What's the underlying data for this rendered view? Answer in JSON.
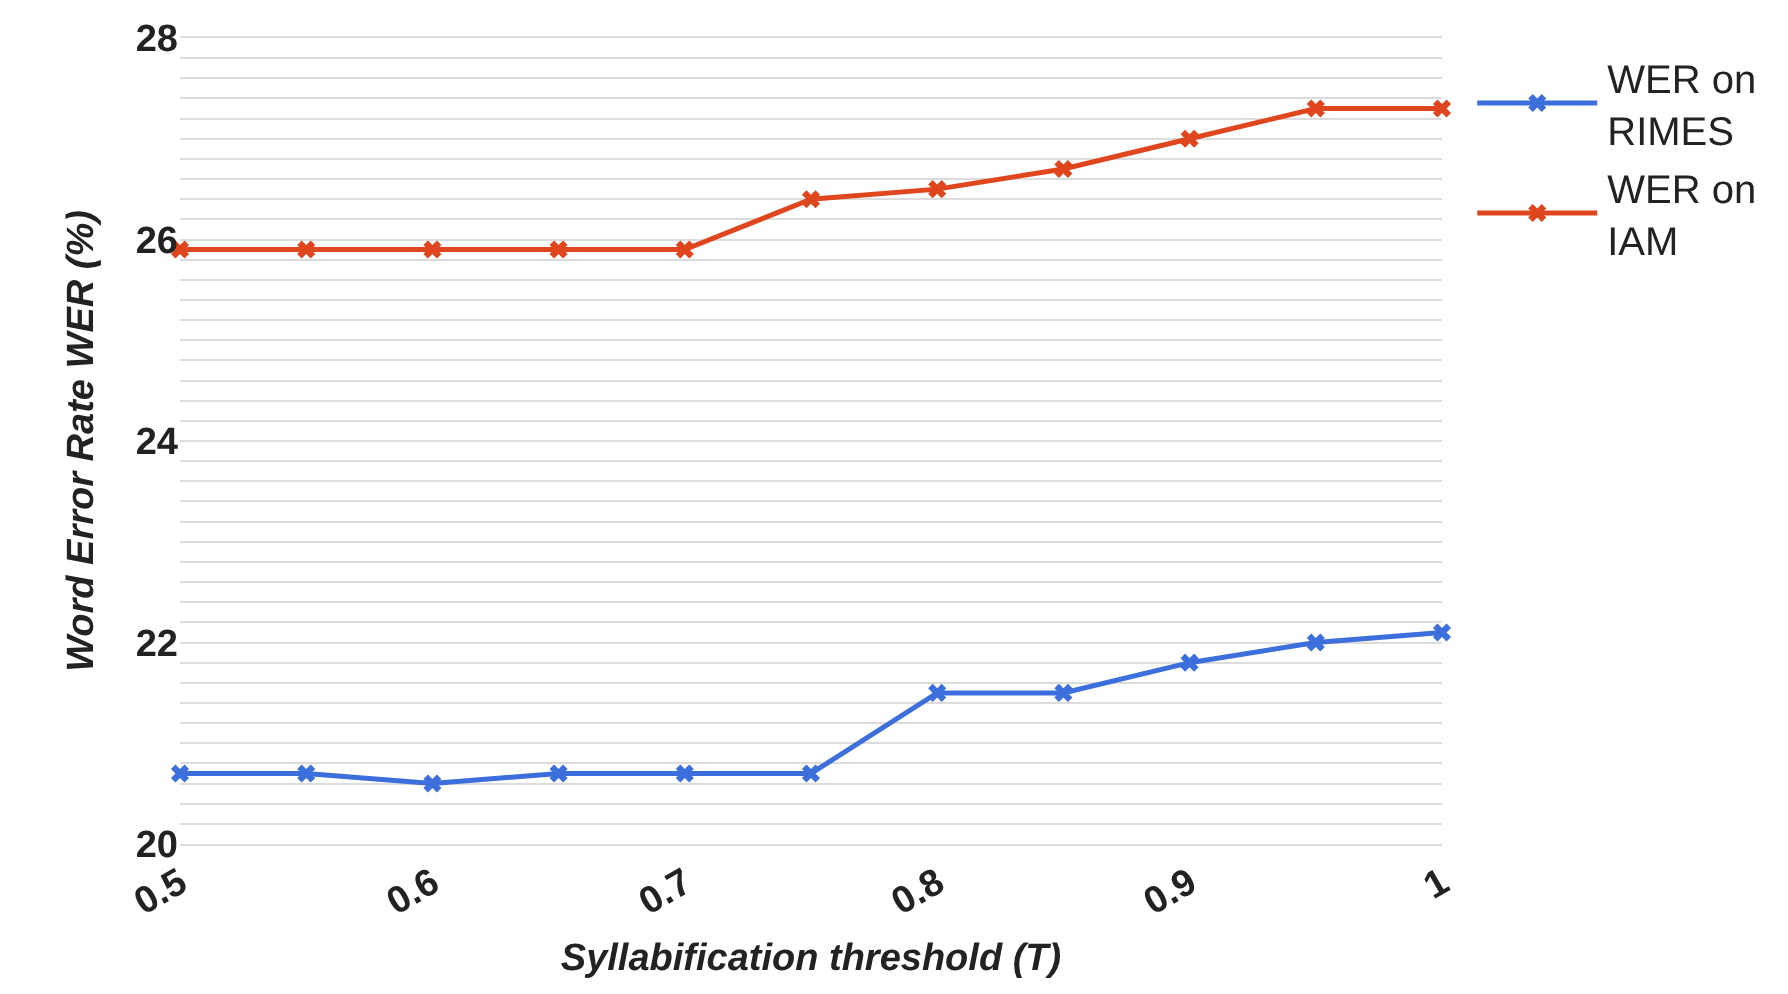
{
  "chart_data": {
    "type": "line",
    "xlabel": "Syllabification threshold (T)",
    "ylabel": "Word Error Rate WER (%)",
    "x": [
      0.5,
      0.55,
      0.6,
      0.65,
      0.7,
      0.75,
      0.8,
      0.85,
      0.9,
      0.95,
      1
    ],
    "series": [
      {
        "name": "WER on RIMES",
        "color": "#3c6fdc",
        "values": [
          20.7,
          20.7,
          20.6,
          20.7,
          20.7,
          20.7,
          21.5,
          21.5,
          21.8,
          22.0,
          22.1
        ]
      },
      {
        "name": "WER on IAM",
        "color": "#e0461e",
        "values": [
          25.9,
          25.9,
          25.9,
          25.9,
          25.9,
          26.4,
          26.5,
          26.7,
          27.0,
          27.3,
          27.3
        ]
      }
    ],
    "xlim": [
      0.5,
      1
    ],
    "xticks": [
      0.5,
      0.6,
      0.7,
      0.8,
      0.9,
      1
    ],
    "ylim": [
      20,
      28
    ],
    "yticks": [
      20,
      {
        "value": 20.2,
        "label": null
      },
      {
        "value": 20.4,
        "label": null
      },
      {
        "value": 20.6,
        "label": null
      },
      {
        "value": 20.8,
        "label": null
      },
      {
        "value": 21,
        "label": null
      },
      {
        "value": 21.2,
        "label": null
      },
      {
        "value": 21.4,
        "label": null
      },
      {
        "value": 21.6,
        "label": null
      },
      {
        "value": 21.8,
        "label": null
      },
      22,
      {
        "value": 22.2,
        "label": null
      },
      {
        "value": 22.4,
        "label": null
      },
      {
        "value": 22.6,
        "label": null
      },
      {
        "value": 22.8,
        "label": null
      },
      {
        "value": 23,
        "label": null
      },
      {
        "value": 23.2,
        "label": null
      },
      {
        "value": 23.4,
        "label": null
      },
      {
        "value": 23.6,
        "label": null
      },
      {
        "value": 23.8,
        "label": null
      },
      24,
      {
        "value": 24.2,
        "label": null
      },
      {
        "value": 24.4,
        "label": null
      },
      {
        "value": 24.6,
        "label": null
      },
      {
        "value": 24.8,
        "label": null
      },
      {
        "value": 25,
        "label": null
      },
      {
        "value": 25.2,
        "label": null
      },
      {
        "value": 25.4,
        "label": null
      },
      {
        "value": 25.6,
        "label": null
      },
      {
        "value": 25.8,
        "label": null
      },
      26,
      {
        "value": 26.2,
        "label": null
      },
      {
        "value": 26.4,
        "label": null
      },
      {
        "value": 26.6,
        "label": null
      },
      {
        "value": 26.8,
        "label": null
      },
      {
        "value": 27,
        "label": null
      },
      {
        "value": 27.2,
        "label": null
      },
      {
        "value": 27.4,
        "label": null
      },
      {
        "value": 27.6,
        "label": null
      },
      {
        "value": 27.8,
        "label": null
      },
      28
    ],
    "grid": "y",
    "legend": "top right",
    "marker": "cross",
    "line_style": "solid"
  }
}
